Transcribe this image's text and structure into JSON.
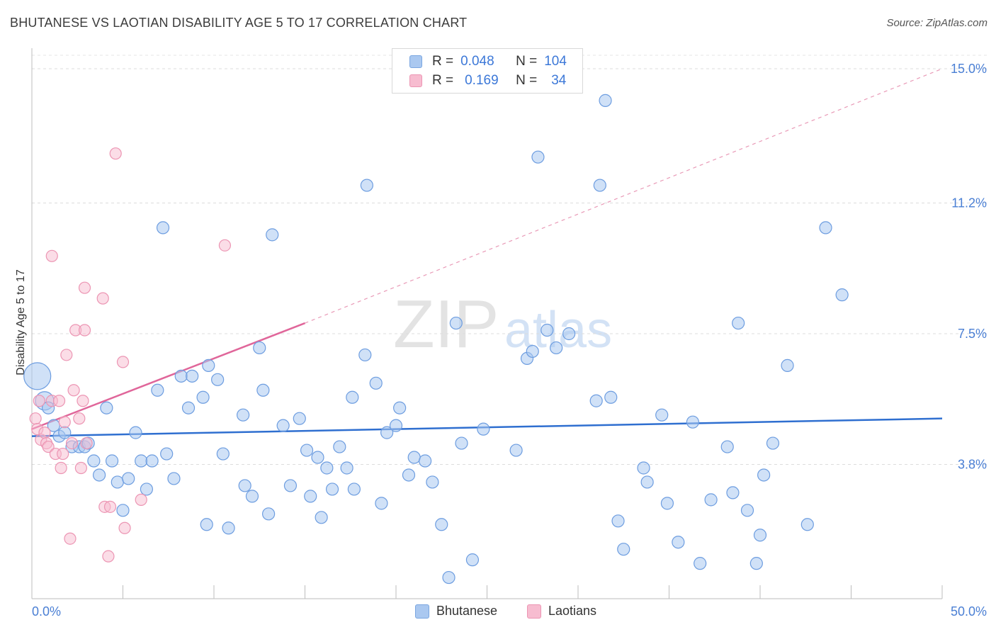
{
  "title": "BHUTANESE VS LAOTIAN DISABILITY AGE 5 TO 17 CORRELATION CHART",
  "source": "Source: ZipAtlas.com",
  "watermark": {
    "zip": "ZIP",
    "atlas": "atlas"
  },
  "legend": {
    "r_label": "R =",
    "n_label": "N =",
    "rows": [
      {
        "r": "0.048",
        "n": "104",
        "fill": "#aac8f0",
        "stroke": "#7aa6e0"
      },
      {
        "r": "0.169",
        "n": "34",
        "fill": "#f7bcd0",
        "stroke": "#ec95b3"
      }
    ]
  },
  "bottom_legend": {
    "blue": "Bhutanese",
    "pink": "Laotians"
  },
  "chart_data": {
    "type": "scatter",
    "title": "BHUTANESE VS LAOTIAN DISABILITY AGE 5 TO 17 CORRELATION CHART",
    "ylabel": "Disability Age 5 to 17",
    "xlabel": "",
    "xlim": [
      0,
      50
    ],
    "ylim": [
      0,
      15.5
    ],
    "x_tick_labels": [
      "0.0%",
      "50.0%"
    ],
    "y_ticks": [
      3.8,
      7.5,
      11.2,
      15.0
    ],
    "y_tick_labels": [
      "3.8%",
      "7.5%",
      "11.2%",
      "15.0%"
    ],
    "grid": "horizontal dashed",
    "legend_position": "top-center",
    "colors": {
      "blue": "#3c78d8",
      "blue_fill": "#aac8f0",
      "pink": "#e0669a",
      "pink_fill": "#f7bcd0"
    },
    "series": [
      {
        "name": "Bhutanese",
        "color": "#3c78d8",
        "trend": {
          "x": [
            0,
            50
          ],
          "y": [
            4.6,
            5.1
          ]
        },
        "points": [
          [
            0.3,
            6.3
          ],
          [
            0.7,
            5.6
          ],
          [
            0.9,
            5.4
          ],
          [
            1.2,
            4.9
          ],
          [
            1.5,
            4.6
          ],
          [
            1.8,
            4.7
          ],
          [
            2.2,
            4.3
          ],
          [
            2.6,
            4.3
          ],
          [
            2.9,
            4.3
          ],
          [
            3.1,
            4.4
          ],
          [
            3.4,
            3.9
          ],
          [
            3.7,
            3.5
          ],
          [
            4.1,
            5.4
          ],
          [
            4.4,
            3.9
          ],
          [
            4.7,
            3.3
          ],
          [
            5.0,
            2.5
          ],
          [
            5.3,
            3.4
          ],
          [
            5.7,
            4.7
          ],
          [
            6.0,
            3.9
          ],
          [
            6.3,
            3.1
          ],
          [
            6.6,
            3.9
          ],
          [
            6.9,
            5.9
          ],
          [
            7.2,
            10.5
          ],
          [
            7.4,
            4.1
          ],
          [
            7.8,
            3.4
          ],
          [
            8.2,
            6.3
          ],
          [
            8.6,
            5.4
          ],
          [
            8.8,
            6.3
          ],
          [
            9.4,
            5.7
          ],
          [
            9.6,
            2.1
          ],
          [
            9.7,
            6.6
          ],
          [
            10.2,
            6.2
          ],
          [
            10.5,
            4.1
          ],
          [
            10.8,
            2.0
          ],
          [
            11.6,
            5.2
          ],
          [
            11.7,
            3.2
          ],
          [
            12.1,
            2.9
          ],
          [
            12.5,
            7.1
          ],
          [
            12.7,
            5.9
          ],
          [
            13.0,
            2.4
          ],
          [
            13.2,
            10.3
          ],
          [
            13.8,
            4.9
          ],
          [
            14.2,
            3.2
          ],
          [
            14.7,
            5.1
          ],
          [
            15.1,
            4.2
          ],
          [
            15.3,
            2.9
          ],
          [
            15.7,
            4.0
          ],
          [
            15.9,
            2.3
          ],
          [
            16.2,
            3.7
          ],
          [
            16.5,
            3.1
          ],
          [
            16.9,
            4.3
          ],
          [
            17.3,
            3.7
          ],
          [
            17.6,
            5.7
          ],
          [
            17.7,
            3.1
          ],
          [
            18.3,
            6.9
          ],
          [
            18.4,
            11.7
          ],
          [
            18.9,
            6.1
          ],
          [
            19.2,
            2.7
          ],
          [
            19.5,
            4.7
          ],
          [
            20.0,
            4.9
          ],
          [
            20.2,
            5.4
          ],
          [
            20.7,
            3.5
          ],
          [
            21.0,
            4.0
          ],
          [
            21.6,
            3.9
          ],
          [
            22.0,
            3.3
          ],
          [
            22.5,
            2.1
          ],
          [
            22.9,
            0.6
          ],
          [
            23.3,
            7.8
          ],
          [
            23.6,
            4.4
          ],
          [
            24.2,
            1.1
          ],
          [
            24.8,
            4.8
          ],
          [
            26.6,
            4.2
          ],
          [
            27.2,
            6.8
          ],
          [
            27.5,
            7.0
          ],
          [
            27.8,
            12.5
          ],
          [
            28.3,
            7.6
          ],
          [
            28.8,
            7.1
          ],
          [
            29.5,
            7.5
          ],
          [
            31.0,
            5.6
          ],
          [
            31.2,
            11.7
          ],
          [
            31.5,
            14.1
          ],
          [
            31.8,
            5.7
          ],
          [
            32.2,
            2.2
          ],
          [
            32.5,
            1.4
          ],
          [
            33.6,
            3.7
          ],
          [
            33.8,
            3.3
          ],
          [
            34.6,
            5.2
          ],
          [
            34.9,
            2.7
          ],
          [
            35.5,
            1.6
          ],
          [
            36.3,
            5.0
          ],
          [
            36.7,
            1.0
          ],
          [
            37.3,
            2.8
          ],
          [
            38.2,
            4.3
          ],
          [
            38.5,
            3.0
          ],
          [
            38.8,
            7.8
          ],
          [
            39.3,
            2.5
          ],
          [
            39.8,
            1.0
          ],
          [
            40.0,
            1.8
          ],
          [
            40.2,
            3.5
          ],
          [
            40.7,
            4.4
          ],
          [
            41.5,
            6.6
          ],
          [
            42.6,
            2.1
          ],
          [
            43.6,
            10.5
          ],
          [
            44.5,
            8.6
          ]
        ],
        "point_sizes": "large point at x=0.3 (bigger circle)"
      },
      {
        "name": "Laotians",
        "color": "#e0669a",
        "trend": {
          "x": [
            0,
            15
          ],
          "y": [
            4.8,
            7.8
          ]
        },
        "trend_extension": {
          "x": [
            15,
            50
          ],
          "y": [
            7.8,
            15.0
          ]
        },
        "points": [
          [
            0.2,
            5.1
          ],
          [
            0.3,
            4.8
          ],
          [
            0.4,
            5.6
          ],
          [
            0.5,
            4.5
          ],
          [
            0.7,
            4.7
          ],
          [
            0.8,
            4.4
          ],
          [
            0.9,
            4.3
          ],
          [
            1.1,
            5.6
          ],
          [
            1.1,
            9.7
          ],
          [
            1.3,
            4.1
          ],
          [
            1.6,
            3.7
          ],
          [
            1.7,
            4.1
          ],
          [
            1.8,
            5.0
          ],
          [
            1.9,
            6.9
          ],
          [
            2.1,
            1.7
          ],
          [
            2.2,
            4.4
          ],
          [
            2.3,
            5.9
          ],
          [
            2.4,
            7.6
          ],
          [
            2.6,
            5.1
          ],
          [
            2.7,
            3.7
          ],
          [
            2.8,
            5.6
          ],
          [
            2.9,
            7.6
          ],
          [
            2.9,
            8.8
          ],
          [
            3.0,
            4.4
          ],
          [
            3.9,
            8.5
          ],
          [
            4.0,
            2.6
          ],
          [
            4.2,
            1.2
          ],
          [
            4.3,
            2.6
          ],
          [
            4.6,
            12.6
          ],
          [
            5.0,
            6.7
          ],
          [
            5.1,
            2.0
          ],
          [
            6.0,
            2.8
          ],
          [
            10.6,
            10.0
          ],
          [
            1.5,
            5.6
          ]
        ]
      }
    ]
  }
}
